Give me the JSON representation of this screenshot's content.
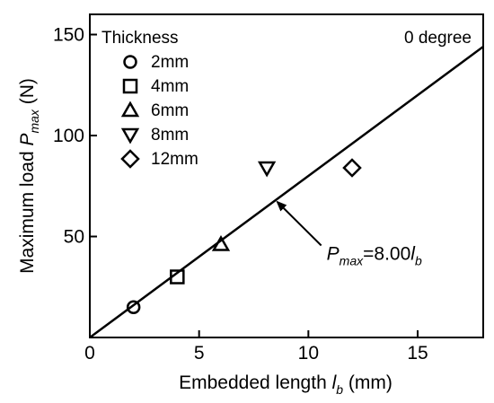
{
  "chart_data": {
    "type": "scatter",
    "xlabel_prefix": "Embedded length ",
    "xlabel_var": "l",
    "xlabel_sub": "b",
    "xlabel_unit": " (mm)",
    "ylabel_prefix": "Maximum load ",
    "ylabel_var": "P",
    "ylabel_sub": "max",
    "ylabel_unit": " (N)",
    "xlim": [
      0,
      18
    ],
    "ylim": [
      0,
      160
    ],
    "xticks": [
      0,
      5,
      10,
      15
    ],
    "yticks": [
      50,
      100,
      150
    ],
    "corner_label": "0 degree",
    "legend_title": "Thickness",
    "series": [
      {
        "name": "2mm",
        "marker": "circle",
        "x": [
          2
        ],
        "y": [
          15
        ]
      },
      {
        "name": "4mm",
        "marker": "square",
        "x": [
          4
        ],
        "y": [
          30
        ]
      },
      {
        "name": "6mm",
        "marker": "triangle-up",
        "x": [
          6
        ],
        "y": [
          46
        ]
      },
      {
        "name": "8mm",
        "marker": "triangle-down",
        "x": [
          8.1
        ],
        "y": [
          84
        ]
      },
      {
        "name": "12mm",
        "marker": "diamond",
        "x": [
          12
        ],
        "y": [
          84
        ]
      }
    ],
    "fit_line": {
      "slope": 8.0,
      "x_range": [
        0,
        18
      ]
    },
    "annotation": {
      "var": "P",
      "sub": "max",
      "eq": "=8.00",
      "var2": "l",
      "sub2": "b",
      "arrow_target": [
        8.5,
        68
      ],
      "text_anchor": [
        11,
        42
      ]
    }
  }
}
